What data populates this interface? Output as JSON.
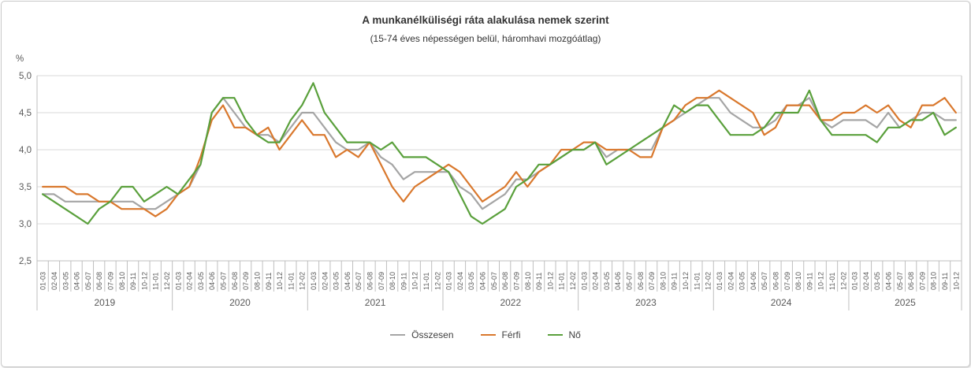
{
  "chart_data": {
    "type": "line",
    "title": "A munkanélküliségi ráta alakulása nemek szerint",
    "subtitle": "(15-74 éves népességen belül, háromhavi mozgóátlag)",
    "unit_label": "%",
    "y_axis": {
      "min": 2.5,
      "max": 5.0,
      "step": 0.5,
      "tick_labels": [
        "5,0",
        "4,5",
        "4,0",
        "3,5",
        "3,0",
        "2,5"
      ],
      "grid": true
    },
    "x_axis": {
      "month_labels_full": [
        "01-03",
        "02-04",
        "03-05",
        "04-06",
        "05-07",
        "06-08",
        "07-09",
        "08-10",
        "09-11",
        "10-12",
        "11-01",
        "12-02"
      ],
      "years": [
        {
          "label": "2019",
          "months": 12
        },
        {
          "label": "2020",
          "months": 12
        },
        {
          "label": "2021",
          "months": 12
        },
        {
          "label": "2022",
          "months": 12
        },
        {
          "label": "2023",
          "months": 12
        },
        {
          "label": "2024",
          "months": 12
        },
        {
          "label": "2025",
          "months": 10
        }
      ]
    },
    "legend_position": "bottom",
    "series": [
      {
        "name": "Összesen",
        "color": "#A5A5A5",
        "values": [
          3.4,
          3.4,
          3.3,
          3.3,
          3.3,
          3.3,
          3.3,
          3.3,
          3.3,
          3.2,
          3.2,
          3.3,
          3.4,
          3.5,
          3.8,
          4.5,
          4.7,
          4.5,
          4.3,
          4.2,
          4.2,
          4.1,
          4.3,
          4.5,
          4.5,
          4.3,
          4.1,
          4.0,
          4.0,
          4.1,
          3.9,
          3.8,
          3.6,
          3.7,
          3.7,
          3.7,
          3.7,
          3.5,
          3.4,
          3.2,
          3.3,
          3.4,
          3.6,
          3.6,
          3.7,
          3.8,
          3.9,
          4.0,
          4.0,
          4.1,
          3.9,
          4.0,
          4.0,
          4.0,
          4.0,
          4.3,
          4.4,
          4.5,
          4.6,
          4.7,
          4.7,
          4.5,
          4.4,
          4.3,
          4.3,
          4.4,
          4.6,
          4.6,
          4.7,
          4.4,
          4.3,
          4.4,
          4.4,
          4.4,
          4.3,
          4.5,
          4.3,
          4.4,
          4.5,
          4.5,
          4.4,
          4.4
        ]
      },
      {
        "name": "Férfi",
        "color": "#D9782D",
        "values": [
          3.5,
          3.5,
          3.5,
          3.4,
          3.4,
          3.3,
          3.3,
          3.2,
          3.2,
          3.2,
          3.1,
          3.2,
          3.4,
          3.5,
          3.9,
          4.4,
          4.6,
          4.3,
          4.3,
          4.2,
          4.3,
          4.0,
          4.2,
          4.4,
          4.2,
          4.2,
          3.9,
          4.0,
          3.9,
          4.1,
          3.8,
          3.5,
          3.3,
          3.5,
          3.6,
          3.7,
          3.8,
          3.7,
          3.5,
          3.3,
          3.4,
          3.5,
          3.7,
          3.5,
          3.7,
          3.8,
          4.0,
          4.0,
          4.1,
          4.1,
          4.0,
          4.0,
          4.0,
          3.9,
          3.9,
          4.3,
          4.4,
          4.6,
          4.7,
          4.7,
          4.8,
          4.7,
          4.6,
          4.5,
          4.2,
          4.3,
          4.6,
          4.6,
          4.6,
          4.4,
          4.4,
          4.5,
          4.5,
          4.6,
          4.5,
          4.6,
          4.4,
          4.3,
          4.6,
          4.6,
          4.7,
          4.5
        ]
      },
      {
        "name": "Nő",
        "color": "#5AA03C",
        "values": [
          3.4,
          3.3,
          3.2,
          3.1,
          3.0,
          3.2,
          3.3,
          3.5,
          3.5,
          3.3,
          3.4,
          3.5,
          3.4,
          3.6,
          3.8,
          4.5,
          4.7,
          4.7,
          4.4,
          4.2,
          4.1,
          4.1,
          4.4,
          4.6,
          4.9,
          4.5,
          4.3,
          4.1,
          4.1,
          4.1,
          4.0,
          4.1,
          3.9,
          3.9,
          3.9,
          3.8,
          3.7,
          3.4,
          3.1,
          3.0,
          3.1,
          3.2,
          3.5,
          3.6,
          3.8,
          3.8,
          3.9,
          4.0,
          4.0,
          4.1,
          3.8,
          3.9,
          4.0,
          4.1,
          4.2,
          4.3,
          4.6,
          4.5,
          4.6,
          4.6,
          4.4,
          4.2,
          4.2,
          4.2,
          4.3,
          4.5,
          4.5,
          4.5,
          4.8,
          4.4,
          4.2,
          4.2,
          4.2,
          4.2,
          4.1,
          4.3,
          4.3,
          4.4,
          4.4,
          4.5,
          4.2,
          4.3
        ]
      }
    ],
    "colors": {
      "gridline": "#D9D9D9",
      "axis": "#BFBFBF",
      "axis_text": "#595959",
      "title_text": "#333333",
      "frame_border": "#C9C9C9"
    }
  }
}
